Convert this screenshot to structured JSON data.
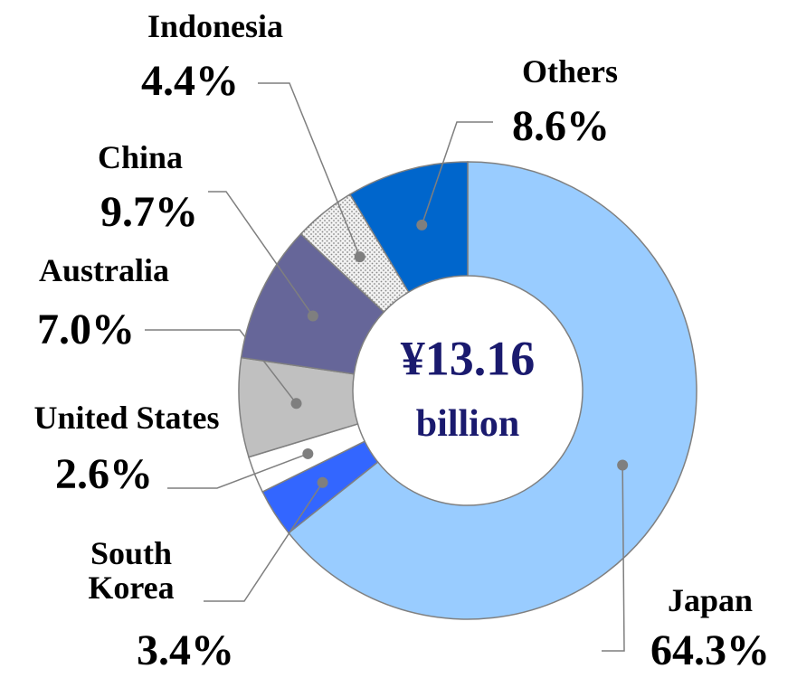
{
  "chart_data": {
    "type": "donut",
    "center_text": [
      "¥13.16",
      "billion"
    ],
    "categories": [
      "Japan",
      "South Korea",
      "United States",
      "Australia",
      "China",
      "Indonesia",
      "Others"
    ],
    "values": [
      64.3,
      3.4,
      2.6,
      7.0,
      9.7,
      4.4,
      8.6
    ],
    "value_labels": [
      "64.3%",
      "3.4%",
      "2.6%",
      "7.0%",
      "9.7%",
      "4.4%",
      "8.6%"
    ],
    "colors": [
      "#99ccff",
      "#3366ff",
      "#ffffff",
      "#c0c0c0",
      "#666699",
      "dotted",
      "#0066cc"
    ]
  }
}
